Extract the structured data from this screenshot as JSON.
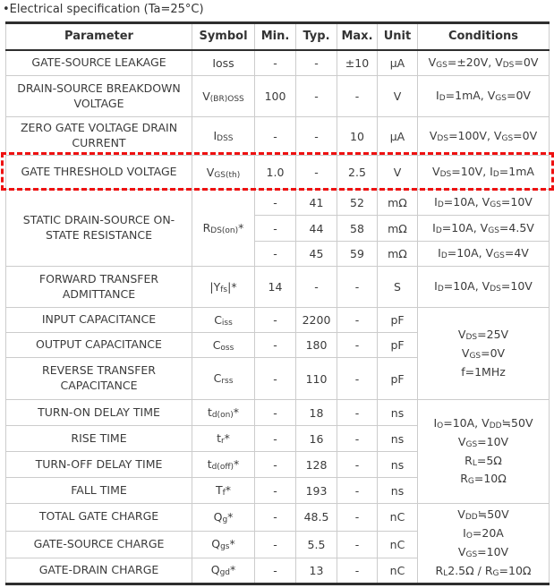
{
  "title": "•Electrical specification (Ta=25°C)",
  "colors": {
    "highlight_red": "#ee1111",
    "text": "#3b3b3b",
    "grid_line": "#cccccc",
    "heavy_line": "#2e2e2e"
  },
  "table": {
    "headers": [
      "Parameter",
      "Symbol",
      "Min.",
      "Typ.",
      "Max.",
      "Unit",
      "Conditions"
    ],
    "highlight_row_id": "gate_threshold_voltage",
    "rows": {
      "gate_source_leakage": {
        "param": "GATE-SOURCE LEAKAGE",
        "symbol": "Ioss",
        "min": "-",
        "typ": "-",
        "max": "±10",
        "unit": "μA",
        "cond": "V_{GS}=±20V, V_{DS}=0V"
      },
      "drain_source_breakdown_voltage": {
        "param": "DRAIN-SOURCE BREAKDOWN VOLTAGE",
        "symbol": "V_{(BR)OSS}",
        "min": "100",
        "typ": "-",
        "max": "-",
        "unit": "V",
        "cond": "I_{D}=1mA, V_{GS}=0V"
      },
      "zero_gate_voltage_drain_current": {
        "param": "ZERO GATE VOLTAGE DRAIN CURRENT",
        "symbol": "I_{DSS}",
        "min": "-",
        "typ": "-",
        "max": "10",
        "unit": "μA",
        "cond": "V_{DS}=100V, V_{GS}=0V"
      },
      "gate_threshold_voltage": {
        "param": "GATE THRESHOLD VOLTAGE",
        "symbol": "V_{GS(th)}",
        "min": "1.0",
        "typ": "-",
        "max": "2.5",
        "unit": "V",
        "cond": "V_{DS}=10V, I_{D}=1mA"
      },
      "static_on_resistance": {
        "param": "STATIC DRAIN-SOURCE ON-STATE RESISTANCE",
        "symbol": "R_{DS(on)}*",
        "entries": [
          {
            "min": "-",
            "typ": "41",
            "max": "52",
            "unit": "mΩ",
            "cond": "I_{D}=10A, V_{GS}=10V"
          },
          {
            "min": "-",
            "typ": "44",
            "max": "58",
            "unit": "mΩ",
            "cond": "I_{D}=10A, V_{GS}=4.5V"
          },
          {
            "min": "-",
            "typ": "45",
            "max": "59",
            "unit": "mΩ",
            "cond": "I_{D}=10A, V_{GS}=4V"
          }
        ]
      },
      "forward_transfer_admittance": {
        "param": "FORWARD TRANSFER ADMITTANCE",
        "symbol": "|Y_{fs}|*",
        "min": "14",
        "typ": "-",
        "max": "-",
        "unit": "S",
        "cond": "I_{D}=10A, V_{DS}=10V"
      },
      "input_capacitance": {
        "param": "INPUT CAPACITANCE",
        "symbol": "C_{iss}",
        "min": "-",
        "typ": "2200",
        "max": "-",
        "unit": "pF"
      },
      "output_capacitance": {
        "param": "OUTPUT CAPACITANCE",
        "symbol": "C_{oss}",
        "min": "-",
        "typ": "180",
        "max": "-",
        "unit": "pF"
      },
      "reverse_transfer_capacitance": {
        "param": "REVERSE TRANSFER CAPACITANCE",
        "symbol": "C_{rss}",
        "min": "-",
        "typ": "110",
        "max": "-",
        "unit": "pF"
      },
      "turn_on_delay_time": {
        "param": "TURN-ON DELAY TIME",
        "symbol": "t_{d(on)}*",
        "min": "-",
        "typ": "18",
        "max": "-",
        "unit": "ns"
      },
      "rise_time": {
        "param": "RISE TIME",
        "symbol": "t_{r}*",
        "min": "-",
        "typ": "16",
        "max": "-",
        "unit": "ns"
      },
      "turn_off_delay_time": {
        "param": "TURN-OFF DELAY TIME",
        "symbol": "t_{d(off)}*",
        "min": "-",
        "typ": "128",
        "max": "-",
        "unit": "ns"
      },
      "fall_time": {
        "param": "FALL TIME",
        "symbol": "T_{f}*",
        "min": "-",
        "typ": "193",
        "max": "-",
        "unit": "ns"
      },
      "total_gate_charge": {
        "param": "TOTAL GATE CHARGE",
        "symbol": "Q_{g}*",
        "min": "-",
        "typ": "48.5",
        "max": "-",
        "unit": "nC"
      },
      "gate_source_charge": {
        "param": "GATE-SOURCE CHARGE",
        "symbol": "Q_{gs}*",
        "min": "-",
        "typ": "5.5",
        "max": "-",
        "unit": "nC"
      },
      "gate_drain_charge": {
        "param": "GATE-DRAIN CHARGE",
        "symbol": "Q_{gd}*",
        "min": "-",
        "typ": "13",
        "max": "-",
        "unit": "nC"
      }
    },
    "shared_conditions": {
      "capacitance": "V_{DS}=25V\nV_{GS}=0V\nf=1MHz",
      "switching": "I_{O}=10A, V_{DD}≒50V\nV_{GS}=10V\nR_{L}=5Ω\nR_{G}=10Ω",
      "charge": "V_{DD}≒50V\nI_{O}=20A\nV_{GS}=10V\nR_{L}2.5Ω / R_{G}=10Ω"
    }
  }
}
